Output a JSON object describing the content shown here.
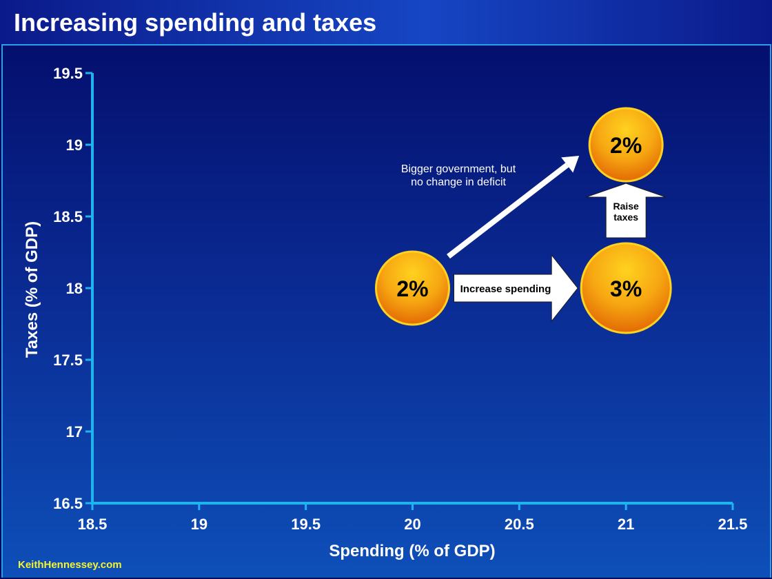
{
  "header": {
    "title": "Increasing spending and taxes"
  },
  "footer": {
    "credit": "KeithHennessey.com"
  },
  "chart_data": {
    "type": "scatter",
    "title": "Increasing spending and taxes",
    "xlabel": "Spending (% of GDP)",
    "ylabel": "Taxes (% of GDP)",
    "xlim": [
      18.5,
      21.5
    ],
    "ylim": [
      16.5,
      19.5
    ],
    "x_ticks": [
      "18.5",
      "19",
      "19.5",
      "20",
      "20.5",
      "21",
      "21.5"
    ],
    "y_ticks": [
      "16.5",
      "17",
      "17.5",
      "18",
      "18.5",
      "19",
      "19.5"
    ],
    "grid": false,
    "points": [
      {
        "x": 20,
        "y": 18,
        "label": "2%",
        "size": "small"
      },
      {
        "x": 21,
        "y": 18,
        "label": "3%",
        "size": "large"
      },
      {
        "x": 21,
        "y": 19,
        "label": "2%",
        "size": "small"
      }
    ],
    "annotations": {
      "spending_arrow": "Increase spending",
      "taxes_arrow_line1": "Raise",
      "taxes_arrow_line2": "taxes",
      "diagonal_line1": "Bigger government, but",
      "diagonal_line2": "no change in deficit"
    },
    "colors": {
      "axis": "#1fb4f0",
      "bubble": "#f29a0c",
      "bubble_border": "#ffd21f",
      "text": "#ffffff"
    }
  }
}
